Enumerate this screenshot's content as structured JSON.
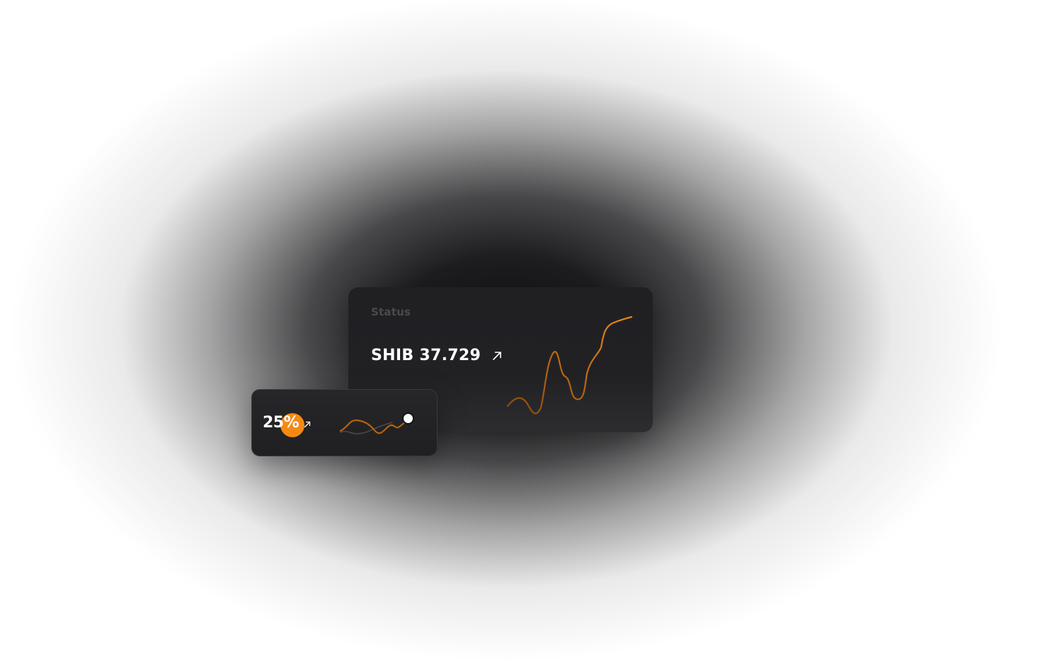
{
  "status_card": {
    "label": "Status",
    "price_text": "SHIB 37.729",
    "trend_icon": "arrow-up-right-icon"
  },
  "percent_card": {
    "value_text": "25%",
    "trend_icon": "arrow-up-right-icon"
  },
  "colors": {
    "accent": "#f48a14",
    "card_background": "#212124",
    "muted_text": "#4a4a4e",
    "primary_text": "#ffffff"
  }
}
